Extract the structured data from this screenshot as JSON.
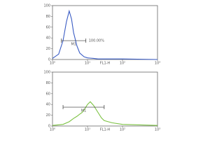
{
  "chart_data": [
    {
      "type": "line",
      "log_x": true,
      "xlabel": "FL1-H",
      "color": "#3a5cc4",
      "x": [
        1,
        1.5,
        2,
        2.5,
        3,
        3.5,
        4,
        5,
        6,
        8,
        10,
        15,
        20,
        50,
        100,
        1000
      ],
      "values": [
        2,
        10,
        35,
        70,
        90,
        75,
        50,
        25,
        12,
        5,
        3,
        2,
        1,
        1,
        1,
        0
      ],
      "xlim": [
        1,
        1000
      ],
      "xticks": [
        {
          "value": 1,
          "label": "10⁰"
        },
        {
          "value": 10,
          "label": "10¹"
        },
        {
          "value": 100,
          "label": "10²"
        },
        {
          "value": 1000,
          "label": "10³"
        }
      ],
      "ylim": [
        0,
        100
      ],
      "yticks": [
        0,
        20,
        40,
        60,
        80,
        100
      ],
      "marker": {
        "label": "M1",
        "range": [
          1.8,
          9
        ],
        "level": 35,
        "annotation": "100.00%"
      }
    },
    {
      "type": "line",
      "log_x": true,
      "xlabel": "FL1-H",
      "color": "#7cc243",
      "x": [
        1,
        2,
        3,
        4,
        5,
        6,
        7,
        8,
        10,
        12,
        15,
        20,
        25,
        30,
        50,
        100,
        1000
      ],
      "values": [
        1,
        3,
        8,
        14,
        18,
        22,
        25,
        30,
        40,
        45,
        38,
        25,
        15,
        10,
        6,
        3,
        1
      ],
      "xlim": [
        1,
        1000
      ],
      "xticks": [
        {
          "value": 1,
          "label": "10⁰"
        },
        {
          "value": 10,
          "label": "10¹"
        },
        {
          "value": 100,
          "label": "10²"
        },
        {
          "value": 1000,
          "label": "10³"
        }
      ],
      "ylim": [
        0,
        100
      ],
      "yticks": [
        0,
        20,
        40,
        60,
        80,
        100
      ],
      "marker": {
        "label": "M1",
        "range": [
          2,
          30
        ],
        "level": 35
      }
    }
  ]
}
